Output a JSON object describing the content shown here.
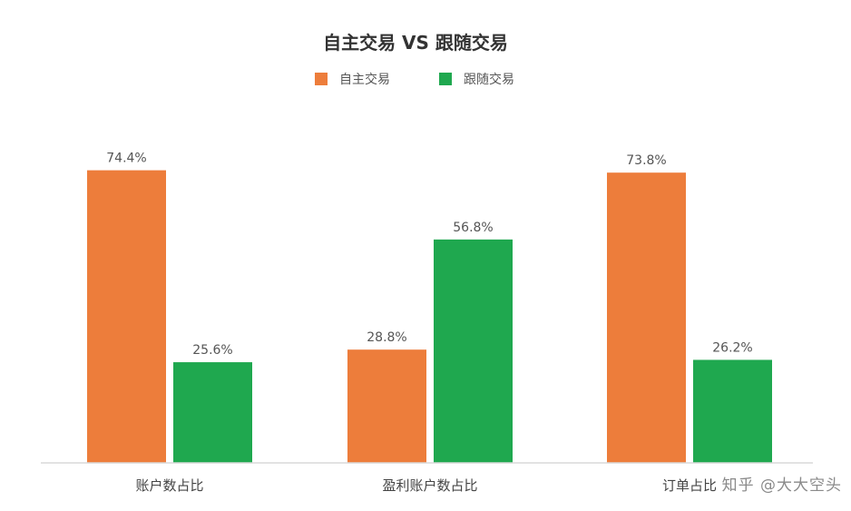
{
  "chart_data": {
    "type": "bar",
    "title": "自主交易 VS 跟随交易",
    "categories": [
      "账户数占比",
      "盈利账户数占比",
      "订单占比"
    ],
    "series": [
      {
        "name": "自主交易",
        "values": [
          74.4,
          28.8,
          73.8
        ],
        "labels": [
          "74.4%",
          "28.8%",
          "73.8%"
        ],
        "color": "#ED7D3B"
      },
      {
        "name": "跟随交易",
        "values": [
          25.6,
          56.8,
          26.2
        ],
        "labels": [
          "25.6%",
          "56.8%",
          "26.2%"
        ],
        "color": "#1FA84F"
      }
    ],
    "unit": "%",
    "ylim": [
      0,
      75
    ],
    "grid": false,
    "legend": "top-center"
  },
  "watermark": "知乎 @大大空头"
}
